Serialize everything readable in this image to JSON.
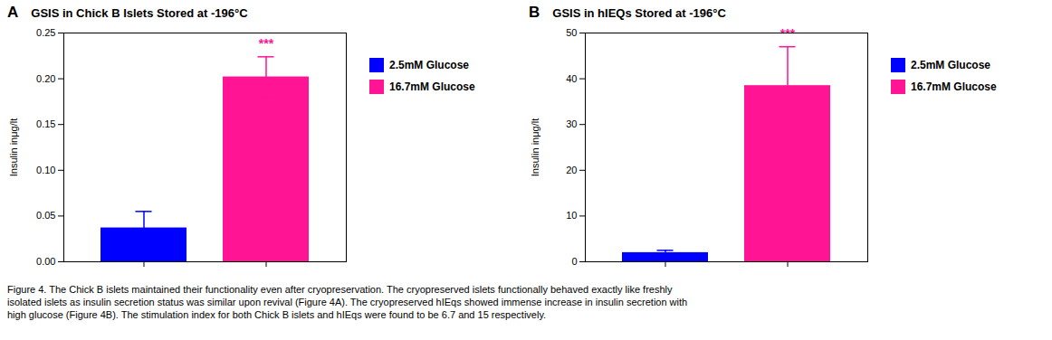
{
  "chart_data": [
    {
      "type": "bar",
      "title": "GSIS in Chick B Islets Stored at -196°C",
      "ylabel": "Insulin inμg/lt",
      "categories": [
        null
      ],
      "series": [
        {
          "name": "2.5mM Glucose",
          "color": "#0000FF",
          "values": [
            0.037
          ],
          "errors": [
            0.018
          ]
        },
        {
          "name": "16.7mM Glucose",
          "color": "#FF1493",
          "values": [
            0.202
          ],
          "errors": [
            0.022
          ]
        }
      ],
      "ylim": [
        0,
        0.25
      ],
      "yticks": [
        {
          "value": 0,
          "label": "0.00"
        },
        0.05,
        {
          "value": 0.1,
          "label": "0.10"
        },
        0.15,
        {
          "value": 0.2,
          "label": "0.20"
        },
        0.25
      ],
      "annotations": [
        {
          "text": "A"
        },
        {
          "text": "***",
          "series": "16.7mM Glucose"
        }
      ],
      "legend": "right",
      "grid": false
    },
    {
      "type": "bar",
      "title": "GSIS in hIEQs Stored at -196°C",
      "ylabel": "Insulin inμg/lt",
      "categories": [
        null
      ],
      "series": [
        {
          "name": "2.5mM Glucose",
          "color": "#0000FF",
          "values": [
            2.0
          ],
          "errors": [
            0.5
          ]
        },
        {
          "name": "16.7mM Glucose",
          "color": "#FF1493",
          "values": [
            38.5
          ],
          "errors": [
            8.5
          ]
        }
      ],
      "ylim": [
        0,
        50
      ],
      "yticks": [
        0,
        10,
        20,
        30,
        40,
        50
      ],
      "annotations": [
        {
          "text": "B"
        },
        {
          "text": "***",
          "series": "16.7mM Glucose"
        }
      ],
      "legend": "right",
      "grid": false
    }
  ],
  "caption": [
    "Figure 4. The Chick B islets maintained their functionality even after cryopreservation. The cryopreserved islets functionally behaved exactly like freshly",
    "isolated islets as insulin secretion status was similar upon revival (Figure 4A). The cryopreserved hIEqs showed immense increase in insulin secretion with",
    "high glucose (Figure 4B). The stimulation index for both Chick B islets and hIEqs were found to be 6.7 and 15 respectively."
  ]
}
